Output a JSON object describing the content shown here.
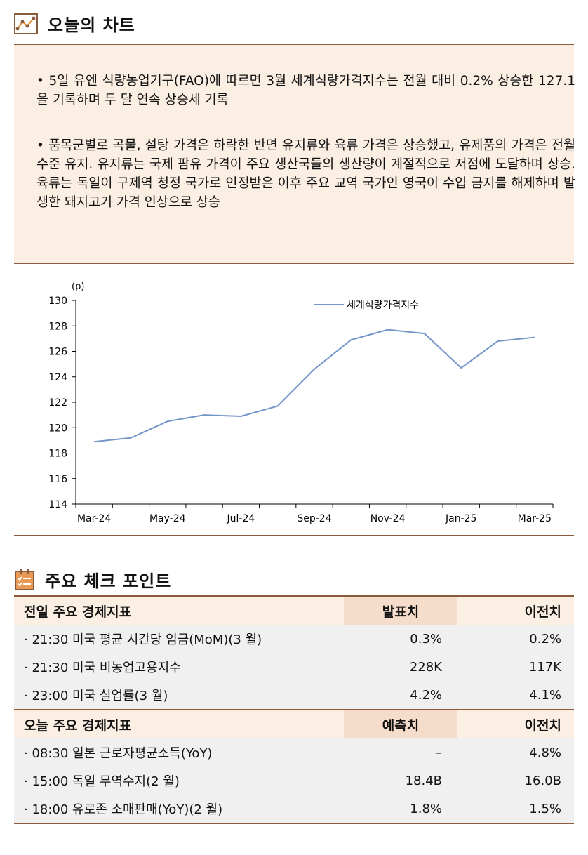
{
  "section1": {
    "title": "오늘의 차트"
  },
  "summary": {
    "bullet1": "• 5일 유엔 식량농업기구(FAO)에 따르면 3월 세계식량가격지수는 전월 대비 0.2% 상승한 127.1을 기록하며 두 달 연속 상승세 기록",
    "bullet2": "• 품목군별로 곡물, 설탕 가격은 하락한 반면 유지류와 육류 가격은 상승했고, 유제품의 가격은 전월 수준 유지. 유지류는 국제 팜유 가격이 주요 생산국들의 생산량이 계절적으로 저점에 도달하며 상승. 육류는 독일이 구제역 청정 국가로 인정받은 이후 주요 교역 국가인 영국이 수입 금지를 해제하며 발생한 돼지고기 가격 인상으로 상승"
  },
  "chart_data": {
    "type": "line",
    "unit_label": "(p)",
    "x": [
      "Mar-24",
      "Apr-24",
      "May-24",
      "Jun-24",
      "Jul-24",
      "Aug-24",
      "Sep-24",
      "Oct-24",
      "Nov-24",
      "Dec-24",
      "Jan-25",
      "Feb-25",
      "Mar-25"
    ],
    "x_tick_labels": [
      "Mar-24",
      "May-24",
      "Jul-24",
      "Sep-24",
      "Nov-24",
      "Jan-25",
      "Mar-25"
    ],
    "series": [
      {
        "name": "세계식량가격지수",
        "values": [
          118.9,
          119.2,
          120.5,
          121.0,
          120.9,
          121.7,
          124.6,
          126.9,
          127.7,
          127.4,
          124.7,
          126.8,
          127.1
        ],
        "color": "#7396c9"
      }
    ],
    "ylim": [
      114,
      130
    ],
    "yticks": [
      114,
      116,
      118,
      120,
      122,
      124,
      126,
      128,
      130
    ],
    "legend_position": "top-right"
  },
  "section2": {
    "title": "주요 체크 포인트"
  },
  "table": {
    "prev": {
      "header": [
        "전일 주요 경제지표",
        "발표치",
        "이전치"
      ],
      "rows": [
        [
          "· 21:30 미국 평균 시간당 임금(MoM)(3 월)",
          "0.3%",
          "0.2%"
        ],
        [
          "· 21:30 미국 비농업고용지수",
          "228K",
          "117K"
        ],
        [
          "· 23:00 미국 실업률(3 월)",
          "4.2%",
          "4.1%"
        ]
      ]
    },
    "today": {
      "header": [
        "오늘 주요 경제지표",
        "예측치",
        "이전치"
      ],
      "rows": [
        [
          "· 08:30 일본 근로자평균소득(YoY)",
          "–",
          "4.8%"
        ],
        [
          "· 15:00 독일 무역수지(2 월)",
          "18.4B",
          "16.0B"
        ],
        [
          "· 18:00 유로존 소매판매(YoY)(2 월)",
          "1.8%",
          "1.5%"
        ]
      ]
    }
  },
  "colors": {
    "accent": "#8a5a3c",
    "panel": "#fbeee3",
    "highlight": "#f6dccb",
    "line": "#7396c9"
  }
}
